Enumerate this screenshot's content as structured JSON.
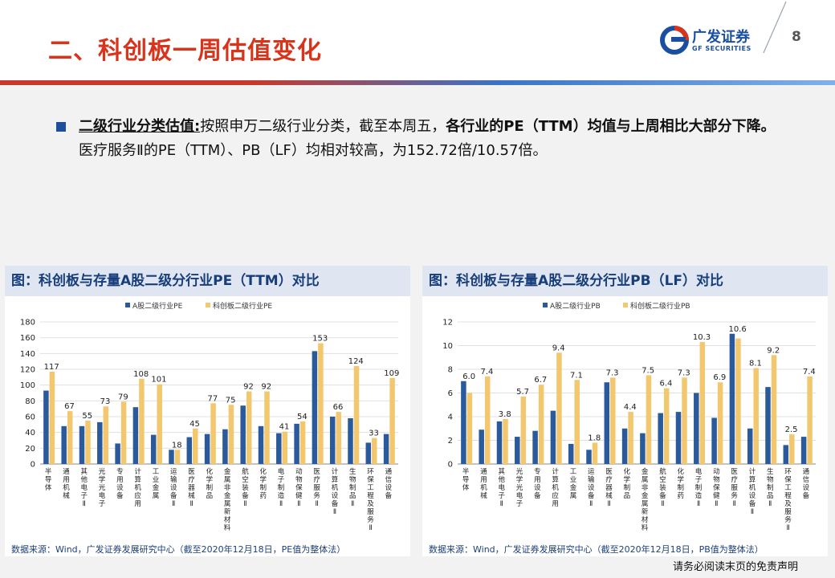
{
  "header": {
    "title": "二、科创板一周估值变化",
    "logo_cn": "广发证券",
    "logo_en": "GF SECURITIES",
    "page_number": "8"
  },
  "summary": {
    "lead": "二级行业分类估值:",
    "part1": "按照申万二级行业分类，截至本周五，",
    "bold": "各行业的PE（TTM）均值与上周相比大部分下降。",
    "part2": "医疗服务Ⅱ的PE（TTM）、PB（LF）均相对较高，为152.72倍/10.57倍。"
  },
  "disclaimer": "请务必阅读末页的免责声明",
  "colors": {
    "a_share": "#2a5a9c",
    "star": "#f2c76e",
    "brand": "#d8341c"
  },
  "chart_data": [
    {
      "type": "bar",
      "title": "图：科创板与存量A股二级分行业PE（TTM）对比",
      "source": "数据来源：Wind，广发证券发展研究中心（截至2020年12月18日，PE值为整体法）",
      "categories": [
        "半导体",
        "通用机械",
        "其他电子Ⅱ",
        "光学光电子",
        "专用设备",
        "计算机应用",
        "工业金属",
        "运输设备Ⅱ",
        "医疗器械Ⅱ",
        "化学制品",
        "金属非金属新材料",
        "航空装备Ⅱ",
        "化学制药",
        "电子制造Ⅱ",
        "动物保健Ⅱ",
        "医疗服务Ⅱ",
        "计算机设备Ⅱ",
        "生物制品Ⅱ",
        "环保工程及服务Ⅱ",
        "通信设备"
      ],
      "series": [
        {
          "name": "A股二级行业PE",
          "values": [
            93,
            48,
            48,
            53,
            26,
            72,
            37,
            18,
            34,
            38,
            44,
            74,
            48,
            39,
            51,
            143,
            60,
            58,
            27,
            38
          ]
        },
        {
          "name": "科创板二级行业PE",
          "values": [
            117,
            67,
            55,
            73,
            79,
            108,
            101,
            18,
            45,
            77,
            75,
            92,
            92,
            41,
            54,
            153,
            66,
            124,
            33,
            109
          ]
        }
      ],
      "labels": [
        "117",
        "67",
        "55",
        "73",
        "79",
        "108",
        "101",
        "18",
        "45",
        "77",
        "75",
        "92",
        "92",
        "41",
        "54",
        "153",
        "66",
        "124",
        "33",
        "109"
      ],
      "ylim": [
        0,
        180
      ],
      "yticks": [
        "0",
        "20",
        "40",
        "60",
        "80",
        "100",
        "120",
        "140",
        "160",
        "180"
      ],
      "grid": true,
      "legend_position": "top"
    },
    {
      "type": "bar",
      "title": "图：科创板与存量A股二级分行业PB（LF）对比",
      "source": "数据来源：Wind，广发证券发展研究中心（截至2020年12月18日，PB值为整体法）",
      "categories": [
        "半导体",
        "通用机械",
        "其他电子Ⅱ",
        "光学光电子",
        "专用设备",
        "计算机应用",
        "工业金属",
        "运输设备Ⅱ",
        "医疗器械Ⅱ",
        "化学制品",
        "金属非金属新材料",
        "航空装备Ⅱ",
        "化学制药",
        "电子制造Ⅱ",
        "动物保健Ⅱ",
        "医疗服务Ⅱ",
        "计算机设备Ⅱ",
        "生物制品Ⅱ",
        "环保工程及服务Ⅱ",
        "通信设备"
      ],
      "series": [
        {
          "name": "A股二级行业PB",
          "values": [
            7.0,
            2.9,
            3.6,
            2.3,
            2.8,
            4.5,
            1.7,
            1.2,
            6.9,
            3.0,
            2.6,
            4.3,
            4.4,
            6.0,
            3.9,
            11.0,
            3.0,
            6.5,
            1.6,
            2.3
          ]
        },
        {
          "name": "科创板二级行业PB",
          "values": [
            6.0,
            7.4,
            3.8,
            5.7,
            6.7,
            9.4,
            7.1,
            1.8,
            7.3,
            4.4,
            7.5,
            6.4,
            7.3,
            10.3,
            6.9,
            10.6,
            8.1,
            9.2,
            2.5,
            7.4
          ]
        }
      ],
      "labels": [
        "6.0",
        "7.4",
        "3.8",
        "5.7",
        "6.7",
        "9.4",
        "7.1",
        "1.8",
        "7.3",
        "4.4",
        "7.5",
        "6.4",
        "7.3",
        "10.3",
        "6.9",
        "10.6",
        "8.1",
        "9.2",
        "2.5",
        "7.4"
      ],
      "ylim": [
        0,
        12
      ],
      "yticks": [
        "0",
        "2",
        "4",
        "6",
        "8",
        "10",
        "12"
      ],
      "grid": true,
      "legend_position": "top"
    }
  ]
}
